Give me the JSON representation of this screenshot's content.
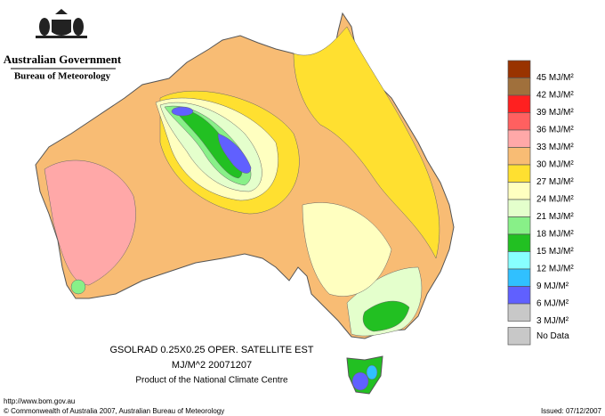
{
  "header": {
    "line1": "Australian Government",
    "line2": "Bureau of Meteorology"
  },
  "legend": {
    "labels": [
      "45 MJ/M²",
      "42 MJ/M²",
      "39 MJ/M²",
      "36 MJ/M²",
      "33 MJ/M²",
      "30 MJ/M²",
      "27 MJ/M²",
      "24 MJ/M²",
      "21 MJ/M²",
      "18 MJ/M²",
      "15 MJ/M²",
      "12 MJ/M²",
      "9 MJ/M²",
      "6 MJ/M²",
      "3 MJ/M²"
    ],
    "colors": [
      "#993300",
      "#a0703c",
      "#ff2020",
      "#ff6060",
      "#ffa8a8",
      "#f8bc74",
      "#ffe030",
      "#ffffc0",
      "#e4ffcc",
      "#88f088",
      "#22c022",
      "#88ffff",
      "#30c0ff",
      "#6060ff",
      "#c8c8c8"
    ],
    "no_data": "No Data"
  },
  "caption": {
    "line1": "GSOLRAD    0.25X0.25 OPER. SATELLITE EST",
    "line2": "MJ/M^2  20071207",
    "line3": "Product of the National Climate Centre"
  },
  "footer": {
    "url": "http://www.bom.gov.au",
    "copyright": "© Commonwealth of Australia 2007, Australian Bureau of Meteorology",
    "issued": "Issued: 07/12/2007"
  }
}
